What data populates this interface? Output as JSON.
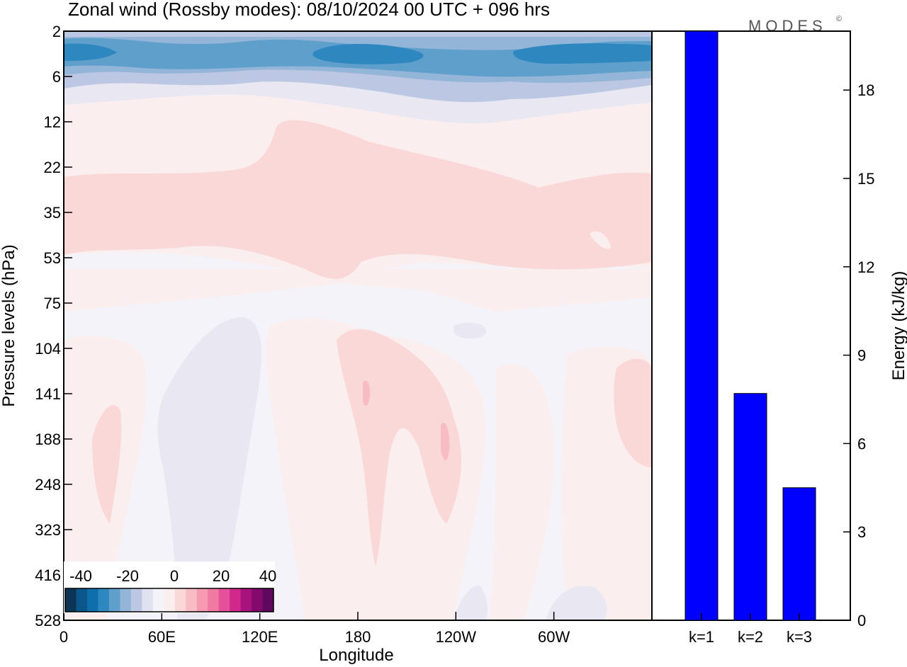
{
  "logo": {
    "text": "MODES",
    "mark": "©"
  },
  "chart_data": [
    {
      "type": "heatmap",
      "title": "Zonal wind (Rossby modes):  08/10/2024  00 UTC  + 096 hrs",
      "xlabel": "Longitude",
      "ylabel": "Pressure levels (hPa)",
      "x_ticks": [
        "0",
        "60E",
        "120E",
        "180",
        "120W",
        "60W"
      ],
      "y_ticks": [
        "2",
        "6",
        "12",
        "22",
        "35",
        "53",
        "75",
        "104",
        "141",
        "188",
        "248",
        "323",
        "416",
        "528"
      ],
      "colorbar": {
        "tick_labels": [
          "-40",
          "-20",
          "0",
          "20",
          "40"
        ],
        "colors": [
          "#0b3553",
          "#0a5589",
          "#0f6fad",
          "#2f87c0",
          "#5f9fcc",
          "#93b5d8",
          "#bcc7e3",
          "#e0e2f0",
          "#f4f3f9",
          "#fbeeee",
          "#fbd8d8",
          "#f8bcc4",
          "#f59ab0",
          "#f07aa2",
          "#e6509b",
          "#d0298b",
          "#a8127c",
          "#850a6e",
          "#60075e"
        ]
      },
      "grid": false
    },
    {
      "type": "bar",
      "categories": [
        "k=1",
        "k=2",
        "k=3"
      ],
      "values": [
        20.0,
        7.7,
        4.5
      ],
      "ylabel": "Energy (kJ/kg)",
      "yticks": [
        "0",
        "3",
        "6",
        "9",
        "12",
        "15",
        "18"
      ],
      "ylim": [
        0,
        20
      ],
      "bar_color": "#0000ff",
      "grid": false
    }
  ]
}
